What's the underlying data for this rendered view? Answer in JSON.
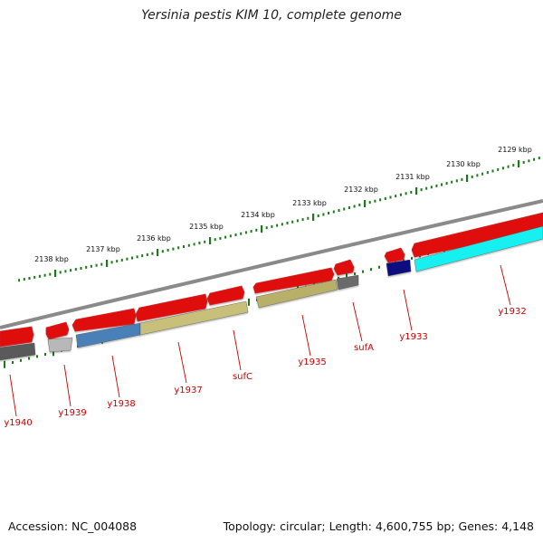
{
  "title": "Yersinia pestis KIM 10, complete genome",
  "footer": {
    "accession": "Accession: NC_004088",
    "topology": "Topology: circular; Length: 4,600,755 bp; Genes: 4,148"
  },
  "colors": {
    "backbone": "#8a8a8a",
    "tick": "#1a7a1a",
    "cds": "#e01010",
    "label": "#cc0000",
    "leader": "#cc0000"
  },
  "scale": {
    "unit": "kbp",
    "ticks": [
      {
        "kbp": 2129,
        "label": "2129 kbp"
      },
      {
        "kbp": 2130,
        "label": "2130 kbp"
      },
      {
        "kbp": 2131,
        "label": "2131 kbp"
      },
      {
        "kbp": 2132,
        "label": "2132 kbp"
      },
      {
        "kbp": 2133,
        "label": "2133 kbp"
      },
      {
        "kbp": 2134,
        "label": "2134 kbp"
      },
      {
        "kbp": 2135,
        "label": "2135 kbp"
      },
      {
        "kbp": 2136,
        "label": "2136 kbp"
      },
      {
        "kbp": 2137,
        "label": "2137 kbp"
      },
      {
        "kbp": 2138,
        "label": "2138 kbp"
      }
    ]
  },
  "genes": [
    {
      "label": "y1932",
      "color": "#19f0f0"
    },
    {
      "label": "y1933",
      "color": "#0a0a80"
    },
    {
      "label": "sufA",
      "color": "#6a6a6a"
    },
    {
      "label": "y1935",
      "color": "#b8b068"
    },
    {
      "label": "sufC",
      "color": "#c8c07a"
    },
    {
      "label": "y1937",
      "color": "#c8c07a"
    },
    {
      "label": "y1938",
      "color": "#4a80b8"
    },
    {
      "label": "y1939",
      "color": "#b8b8b8"
    },
    {
      "label": "y1940",
      "color": "#5a5a5a"
    }
  ]
}
